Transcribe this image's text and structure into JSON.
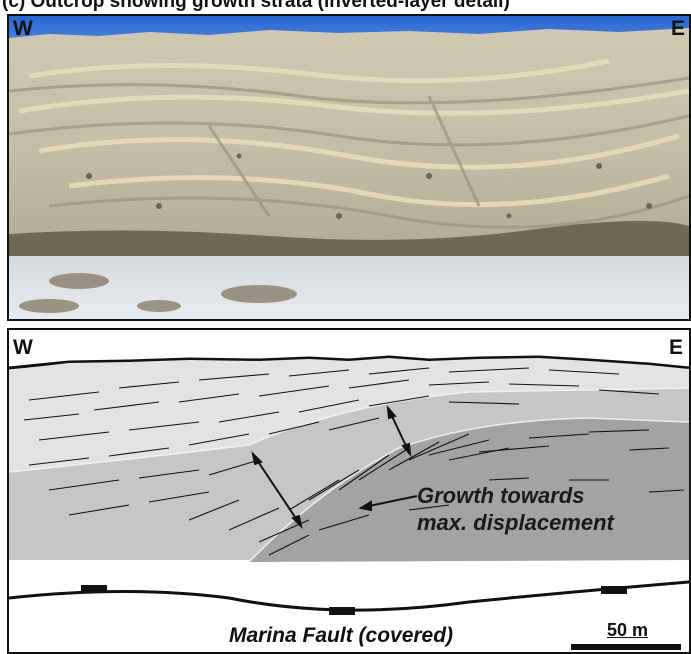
{
  "header": {
    "title": "(c) Outcrop showing growth strata (inverted-layer detail)"
  },
  "photo": {
    "west_label": "W",
    "east_label": "E",
    "colors": {
      "sky": "#2f6fd6",
      "cliff": "#c9c2ae",
      "vegetation": "#6e6a52",
      "sand": "#dfe2e6"
    }
  },
  "sketch": {
    "west_label": "W",
    "east_label": "E",
    "annotation_line1": "Growth towards",
    "annotation_line2": "max. displacement",
    "fault_label": "Marina Fault (covered)",
    "scale_label": "50 m",
    "colors": {
      "light": "#e3e3e3",
      "mid": "#c6c6c6",
      "dark": "#a3a3a3"
    }
  }
}
